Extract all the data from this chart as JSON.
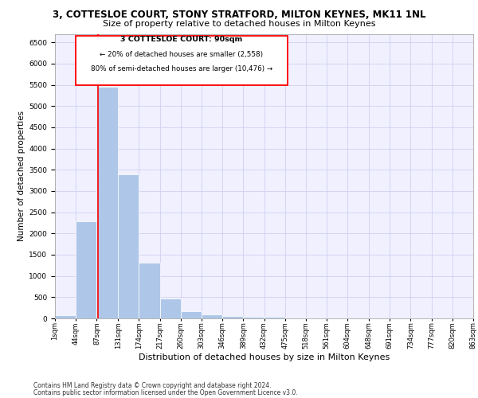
{
  "title1": "3, COTTESLOE COURT, STONY STRATFORD, MILTON KEYNES, MK11 1NL",
  "title2": "Size of property relative to detached houses in Milton Keynes",
  "xlabel": "Distribution of detached houses by size in Milton Keynes",
  "ylabel": "Number of detached properties",
  "footer1": "Contains HM Land Registry data © Crown copyright and database right 2024.",
  "footer2": "Contains public sector information licensed under the Open Government Licence v3.0.",
  "annotation_title": "3 COTTESLOE COURT: 90sqm",
  "annotation_line1": "← 20% of detached houses are smaller (2,558)",
  "annotation_line2": "80% of semi-detached houses are larger (10,476) →",
  "bar_edges": [
    1,
    44,
    87,
    131,
    174,
    217,
    260,
    303,
    346,
    389,
    432,
    475,
    518,
    561,
    604,
    648,
    691,
    734,
    777,
    820,
    863
  ],
  "bar_heights": [
    75,
    2280,
    5460,
    3390,
    1310,
    475,
    160,
    100,
    65,
    40,
    30,
    20,
    15,
    10,
    8,
    5,
    4,
    3,
    2,
    2
  ],
  "bar_color": "#aec7e8",
  "vline_x": 90,
  "vline_color": "red",
  "grid_color": "#d0d0f0",
  "background_color": "#f0f0ff",
  "ylim": [
    0,
    6700
  ],
  "yticks": [
    0,
    500,
    1000,
    1500,
    2000,
    2500,
    3000,
    3500,
    4000,
    4500,
    5000,
    5500,
    6000,
    6500
  ],
  "title1_fontsize": 8.5,
  "title2_fontsize": 8,
  "xlabel_fontsize": 8,
  "ylabel_fontsize": 7.5,
  "footer_fontsize": 5.5,
  "tick_fontsize": 6,
  "ytick_fontsize": 6.5
}
